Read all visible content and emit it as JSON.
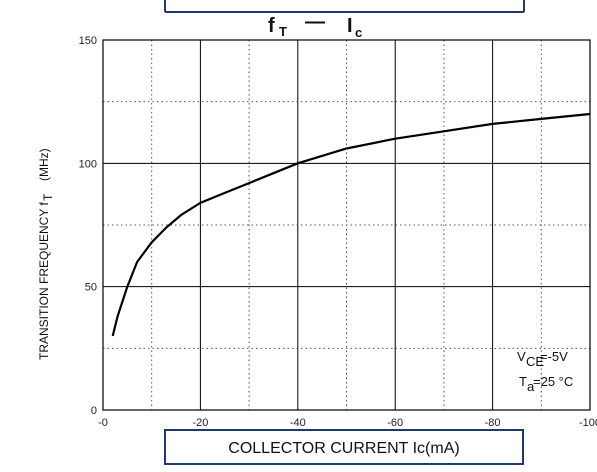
{
  "chart_data": {
    "type": "line",
    "title": {
      "left": "f",
      "left_sub": "T",
      "sep": "—",
      "right": "I",
      "right_sub": "c"
    },
    "xlabel": "COLLECTOR CURRENT Ic(mA)",
    "ylabel": {
      "main": "TRANSITION FREQUENCY  f",
      "sub": "T",
      "unit": "(MHz)"
    },
    "xlim": [
      0,
      -100
    ],
    "ylim": [
      0,
      150
    ],
    "x_ticks": [
      "-0",
      "-20",
      "-40",
      "-60",
      "-80",
      "-100"
    ],
    "y_ticks": [
      "0",
      "50",
      "100",
      "150"
    ],
    "grid": "major solid, minor dotted",
    "annotations": {
      "vce": {
        "main": "V",
        "sub": "CE",
        "rest": "=-5V"
      },
      "ta": {
        "main": "T",
        "sub": "a",
        "rest": "=25 °C"
      }
    },
    "series": [
      {
        "x": [
          -2,
          -3,
          -5,
          -7,
          -10,
          -13,
          -16,
          -20,
          -25,
          -30,
          -35,
          -40,
          -50,
          -60,
          -70,
          -80,
          -90,
          -100
        ],
        "y": [
          30,
          38,
          50,
          60,
          68,
          74,
          79,
          84,
          88,
          92,
          96,
          100,
          106,
          110,
          113,
          116,
          118,
          120
        ]
      }
    ]
  }
}
